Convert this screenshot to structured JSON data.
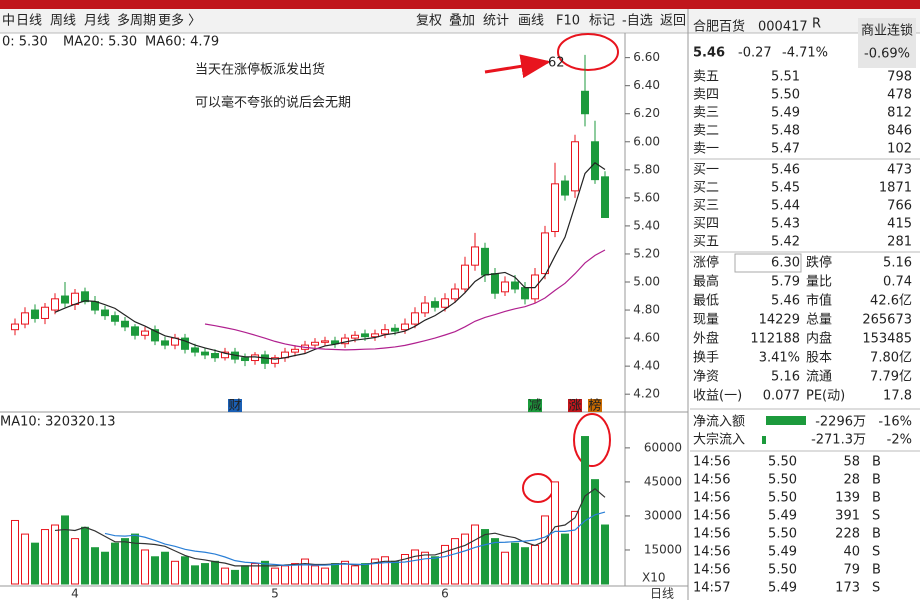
{
  "toolbar": {
    "tabs": [
      "中",
      "日线",
      "周线",
      "月线",
      "多周期",
      "更多 〉"
    ],
    "buttons": [
      "复权",
      "叠加",
      "统计",
      "画线",
      "F10",
      "标记",
      "-自选",
      "返回"
    ]
  },
  "chart_data": {
    "type": "candlestick",
    "ma_labels": [
      "0: 5.30",
      "MA20: 5.30",
      "MA60: 4.79"
    ],
    "volume_label": "MA10: 320320.13",
    "annotation": [
      "当天在涨停板派发出货",
      "可以毫不夸张的说后会无期"
    ],
    "high_label": "62",
    "period_label": "日线",
    "categories": [
      null,
      null,
      null,
      null,
      null,
      null,
      "4",
      null,
      null,
      null,
      null,
      null,
      null,
      null,
      null,
      null,
      null,
      null,
      null,
      null,
      null,
      null,
      null,
      null,
      null,
      null,
      "5",
      null,
      null,
      null,
      null,
      null,
      null,
      null,
      null,
      null,
      null,
      null,
      null,
      null,
      null,
      null,
      null,
      "6",
      null,
      null,
      null,
      null,
      null,
      null,
      null,
      null,
      null,
      null,
      null,
      null,
      null,
      null,
      null,
      null
    ],
    "events": [
      null,
      null,
      null,
      null,
      null,
      null,
      null,
      null,
      null,
      null,
      null,
      null,
      null,
      null,
      null,
      null,
      null,
      null,
      null,
      null,
      null,
      null,
      "财",
      null,
      null,
      null,
      null,
      null,
      null,
      null,
      null,
      null,
      null,
      null,
      null,
      null,
      null,
      null,
      null,
      null,
      null,
      null,
      null,
      null,
      null,
      null,
      null,
      null,
      null,
      null,
      null,
      null,
      "减",
      null,
      null,
      null,
      "涨",
      null,
      "榜",
      null
    ],
    "open": [
      4.66,
      4.7,
      4.8,
      4.74,
      4.8,
      4.9,
      4.84,
      4.93,
      4.86,
      4.8,
      4.76,
      4.72,
      4.68,
      4.62,
      4.66,
      4.58,
      4.55,
      4.6,
      4.53,
      4.5,
      4.49,
      4.46,
      4.5,
      4.46,
      4.44,
      4.48,
      4.42,
      4.46,
      4.5,
      4.52,
      4.55,
      4.57,
      4.58,
      4.56,
      4.6,
      4.63,
      4.61,
      4.63,
      4.67,
      4.66,
      4.7,
      4.78,
      4.86,
      4.82,
      4.88,
      4.95,
      5.12,
      5.24,
      5.06,
      4.93,
      5.0,
      4.96,
      4.88,
      5.06,
      5.36,
      5.72,
      5.65,
      6.36,
      6.0,
      5.75
    ],
    "high": [
      4.74,
      4.82,
      4.84,
      4.85,
      4.92,
      5.0,
      4.95,
      4.96,
      4.9,
      4.83,
      4.79,
      4.75,
      4.7,
      4.68,
      4.69,
      4.61,
      4.63,
      4.63,
      4.56,
      4.53,
      4.52,
      4.53,
      4.53,
      4.49,
      4.5,
      4.51,
      4.48,
      4.53,
      4.55,
      4.58,
      4.6,
      4.61,
      4.61,
      4.63,
      4.65,
      4.66,
      4.66,
      4.7,
      4.7,
      4.74,
      4.82,
      4.9,
      4.89,
      4.92,
      4.99,
      5.18,
      5.35,
      5.28,
      5.1,
      5.04,
      5.05,
      5.0,
      5.1,
      5.4,
      5.85,
      5.76,
      6.05,
      6.62,
      6.15,
      5.79
    ],
    "low": [
      4.62,
      4.67,
      4.71,
      4.7,
      4.77,
      4.82,
      4.8,
      4.84,
      4.77,
      4.73,
      4.69,
      4.65,
      4.59,
      4.59,
      4.55,
      4.52,
      4.52,
      4.49,
      4.47,
      4.45,
      4.43,
      4.44,
      4.42,
      4.4,
      4.41,
      4.38,
      4.39,
      4.43,
      4.47,
      4.49,
      4.52,
      4.54,
      4.53,
      4.53,
      4.57,
      4.58,
      4.58,
      4.6,
      4.62,
      4.63,
      4.67,
      4.75,
      4.79,
      4.79,
      4.85,
      4.92,
      5.08,
      5.0,
      4.88,
      4.9,
      4.92,
      4.84,
      4.85,
      5.02,
      5.32,
      5.58,
      5.6,
      6.11,
      5.7,
      5.46
    ],
    "close": [
      4.7,
      4.78,
      4.74,
      4.82,
      4.88,
      4.85,
      4.92,
      4.86,
      4.8,
      4.76,
      4.72,
      4.68,
      4.62,
      4.65,
      4.58,
      4.55,
      4.6,
      4.52,
      4.5,
      4.48,
      4.46,
      4.5,
      4.45,
      4.44,
      4.48,
      4.42,
      4.46,
      4.5,
      4.52,
      4.55,
      4.57,
      4.58,
      4.56,
      4.6,
      4.62,
      4.61,
      4.63,
      4.66,
      4.65,
      4.7,
      4.78,
      4.85,
      4.82,
      4.88,
      4.95,
      5.12,
      5.25,
      5.05,
      4.92,
      5.0,
      4.95,
      4.88,
      5.05,
      5.35,
      5.7,
      5.62,
      6.0,
      6.2,
      5.73,
      5.46
    ],
    "volume": [
      28000,
      22000,
      18000,
      24000,
      26000,
      30000,
      20000,
      25000,
      16000,
      14000,
      18000,
      20000,
      22000,
      15000,
      12000,
      14000,
      10000,
      12000,
      8000,
      9000,
      10000,
      7000,
      6000,
      8000,
      9000,
      10000,
      7000,
      8000,
      9000,
      11000,
      8000,
      7000,
      9000,
      10000,
      8000,
      9000,
      11000,
      12000,
      10000,
      13000,
      15000,
      14000,
      12000,
      17000,
      20000,
      22000,
      26000,
      24000,
      20000,
      14000,
      18000,
      16000,
      17000,
      30000,
      45000,
      22000,
      32000,
      65000,
      46000,
      26000
    ],
    "up_color": "#e8141e",
    "down_color": "#1c9a3c",
    "ylim": [
      4.13,
      6.74
    ],
    "yticks": [
      {
        "value": 4.2,
        "label": "4.20"
      },
      {
        "value": 4.4,
        "label": "4.40"
      },
      {
        "value": 4.6,
        "label": "4.60"
      },
      {
        "value": 4.8,
        "label": "4.80"
      },
      {
        "value": 5.0,
        "label": "5.00"
      },
      {
        "value": 5.2,
        "label": "5.20"
      },
      {
        "value": 5.4,
        "label": "5.40"
      },
      {
        "value": 5.6,
        "label": "5.60"
      },
      {
        "value": 5.8,
        "label": "5.80"
      },
      {
        "value": 6.0,
        "label": "6.00"
      },
      {
        "value": 6.2,
        "label": "6.20"
      },
      {
        "value": 6.4,
        "label": "6.40"
      },
      {
        "value": 6.6,
        "label": "6.60"
      }
    ],
    "volume_ylim": [
      0,
      67000
    ],
    "volume_yticks": [
      15000,
      30000,
      45000,
      60000
    ],
    "volume_unit": "X10"
  },
  "quote": {
    "name": "合肥百货",
    "code": "000417",
    "flag": "R",
    "sector": "商业连锁",
    "sector_change": "-0.69%",
    "price": "5.46",
    "change": "-0.27",
    "change_pct": "-4.71%",
    "asks": [
      [
        "卖五",
        "5.51",
        "798"
      ],
      [
        "卖四",
        "5.50",
        "478"
      ],
      [
        "卖三",
        "5.49",
        "812"
      ],
      [
        "卖二",
        "5.48",
        "846"
      ],
      [
        "卖一",
        "5.47",
        "102"
      ]
    ],
    "bids": [
      [
        "买一",
        "5.46",
        "473"
      ],
      [
        "买二",
        "5.45",
        "1871"
      ],
      [
        "买三",
        "5.44",
        "766"
      ],
      [
        "买四",
        "5.43",
        "415"
      ],
      [
        "买五",
        "5.42",
        "281"
      ]
    ],
    "stats": [
      [
        "涨停",
        "6.30",
        "跌停",
        "5.16"
      ],
      [
        "最高",
        "5.79",
        "量比",
        "0.74"
      ],
      [
        "最低",
        "5.46",
        "市值",
        "42.6亿"
      ],
      [
        "现量",
        "14229",
        "总量",
        "265673"
      ],
      [
        "外盘",
        "112188",
        "内盘",
        "153485"
      ],
      [
        "换手",
        "3.41%",
        "股本",
        "7.80亿"
      ],
      [
        "净资",
        "5.16",
        "流通",
        "7.79亿"
      ],
      [
        "收益(一)",
        "0.077",
        "PE(动)",
        "17.8"
      ]
    ],
    "flows": [
      [
        "净流入额",
        "-2296万",
        "-16%"
      ],
      [
        "大宗流入",
        "-271.3万",
        "-2%"
      ]
    ],
    "trades": [
      [
        "14:56",
        "5.50",
        "58",
        "B"
      ],
      [
        "14:56",
        "5.50",
        "28",
        "B"
      ],
      [
        "14:56",
        "5.50",
        "139",
        "B"
      ],
      [
        "14:56",
        "5.49",
        "391",
        "S"
      ],
      [
        "14:56",
        "5.50",
        "228",
        "B"
      ],
      [
        "14:56",
        "5.49",
        "40",
        "S"
      ],
      [
        "14:56",
        "5.50",
        "79",
        "B"
      ],
      [
        "14:57",
        "5.49",
        "173",
        "S"
      ]
    ]
  }
}
